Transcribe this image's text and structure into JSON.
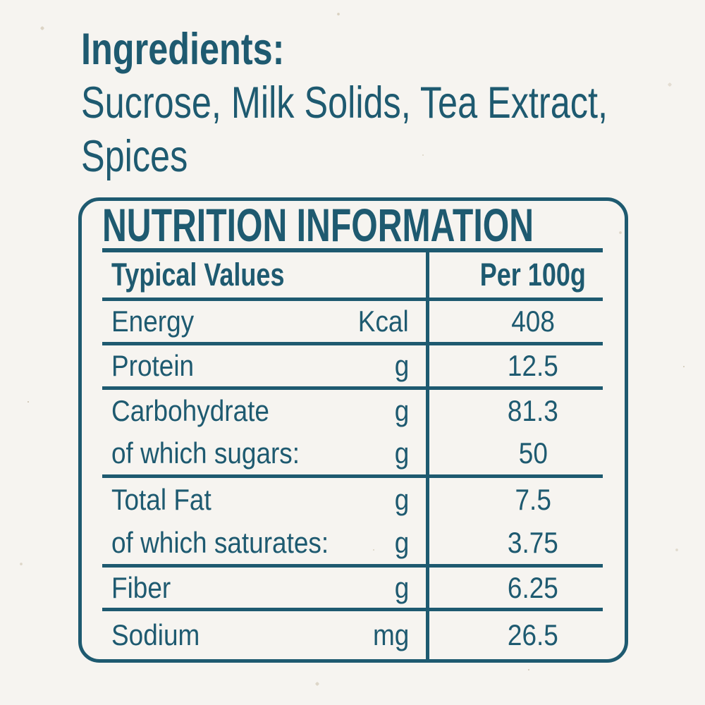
{
  "colors": {
    "ink": "#1e5a70",
    "paper": "#f6f4f0"
  },
  "ingredients": {
    "heading": "Ingredients:",
    "line1": "Sucrose, Milk Solids, Tea Extract,",
    "line2": "Spices"
  },
  "nutrition": {
    "title": "NUTRITION INFORMATION",
    "header": {
      "label": "Typical Values",
      "per": "Per 100g"
    },
    "groups": [
      {
        "rows": [
          {
            "label": "Energy",
            "unit": "Kcal",
            "value": "408"
          }
        ]
      },
      {
        "rows": [
          {
            "label": "Protein",
            "unit": "g",
            "value": "12.5"
          }
        ]
      },
      {
        "rows": [
          {
            "label": "Carbohydrate",
            "unit": "g",
            "value": "81.3"
          },
          {
            "label": "of which sugars:",
            "unit": "g",
            "value": "50"
          }
        ]
      },
      {
        "rows": [
          {
            "label": "Total Fat",
            "unit": "g",
            "value": "7.5"
          },
          {
            "label": "of which saturates:",
            "unit": "g",
            "value": "3.75"
          }
        ]
      },
      {
        "rows": [
          {
            "label": "Fiber",
            "unit": "g",
            "value": "6.25"
          }
        ]
      },
      {
        "rows": [
          {
            "label": "Sodium",
            "unit": "mg",
            "value": "26.5"
          }
        ]
      }
    ]
  }
}
